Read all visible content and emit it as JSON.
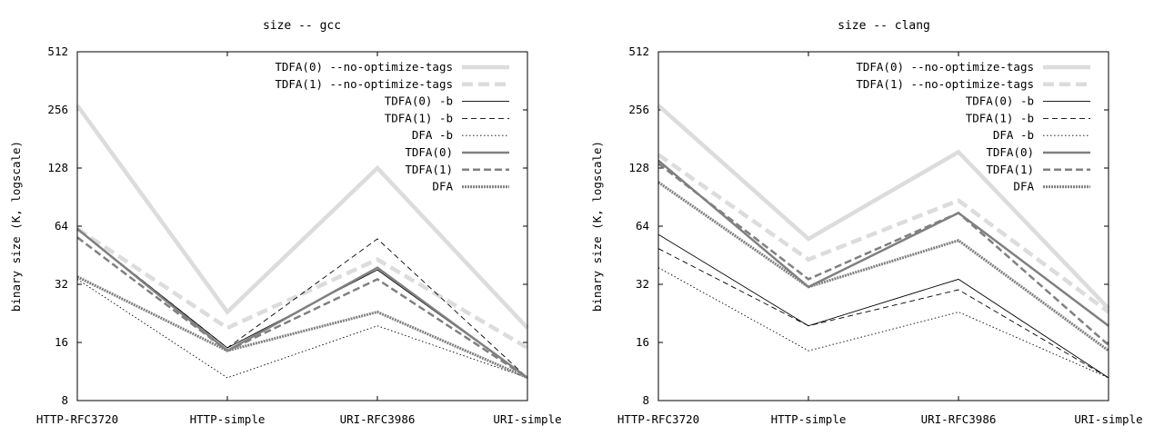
{
  "chart_data": [
    {
      "type": "line",
      "title": "size -- gcc",
      "xlabel": "",
      "ylabel": "binary size (K, logscale)",
      "yscale": "log2",
      "ylim": [
        8,
        512
      ],
      "yticks": [
        "8",
        "16",
        "32",
        "64",
        "128",
        "256",
        "512"
      ],
      "categories": [
        "HTTP-RFC3720",
        "HTTP-simple",
        "URI-RFC3986",
        "URI-simple"
      ],
      "series": [
        {
          "name": "TDFA(0) --no-optimize-tags",
          "values": [
            270,
            23,
            128,
            19
          ]
        },
        {
          "name": "TDFA(1) --no-optimize-tags",
          "values": [
            62,
            19,
            43,
            15
          ]
        },
        {
          "name": "TDFA(0) -b",
          "values": [
            62,
            15,
            38,
            10.5
          ]
        },
        {
          "name": "TDFA(1) -b",
          "values": [
            62,
            15,
            55,
            10.5
          ]
        },
        {
          "name": "DFA -b",
          "values": [
            34,
            10.5,
            19.5,
            10.5
          ]
        },
        {
          "name": "TDFA(0)",
          "values": [
            62,
            14.5,
            39,
            10.5
          ]
        },
        {
          "name": "TDFA(1)",
          "values": [
            56,
            14.5,
            34,
            10.5
          ]
        },
        {
          "name": "DFA",
          "values": [
            35,
            14.5,
            23,
            10.5
          ]
        }
      ]
    },
    {
      "type": "line",
      "title": "size -- clang",
      "xlabel": "",
      "ylabel": "binary size (K, logscale)",
      "yscale": "log2",
      "ylim": [
        8,
        512
      ],
      "yticks": [
        "8",
        "16",
        "32",
        "64",
        "128",
        "256",
        "512"
      ],
      "categories": [
        "HTTP-RFC3720",
        "HTTP-simple",
        "URI-RFC3986",
        "URI-simple"
      ],
      "series": [
        {
          "name": "TDFA(0) --no-optimize-tags",
          "values": [
            270,
            55,
            155,
            24
          ]
        },
        {
          "name": "TDFA(1) --no-optimize-tags",
          "values": [
            150,
            43,
            87,
            23
          ]
        },
        {
          "name": "TDFA(0) -b",
          "values": [
            58,
            19.5,
            34,
            10.5
          ]
        },
        {
          "name": "TDFA(1) -b",
          "values": [
            49,
            19.5,
            30,
            10.5
          ]
        },
        {
          "name": "DFA -b",
          "values": [
            39,
            14.5,
            23,
            10.5
          ]
        },
        {
          "name": "TDFA(0)",
          "values": [
            140,
            31,
            75,
            19.5
          ]
        },
        {
          "name": "TDFA(1)",
          "values": [
            135,
            34,
            75,
            15.5
          ]
        },
        {
          "name": "DFA",
          "values": [
            108,
            31,
            54,
            14.5
          ]
        }
      ]
    }
  ],
  "series_styles": [
    {
      "color": "#dcdcdc",
      "width": 4.5,
      "dash": ""
    },
    {
      "color": "#dcdcdc",
      "width": 4.5,
      "dash": "12,6"
    },
    {
      "color": "#000000",
      "width": 0.9,
      "dash": ""
    },
    {
      "color": "#000000",
      "width": 0.9,
      "dash": "6,4"
    },
    {
      "color": "#000000",
      "width": 0.9,
      "dash": "1.5,2.5"
    },
    {
      "color": "#808080",
      "width": 2.5,
      "dash": ""
    },
    {
      "color": "#808080",
      "width": 2.5,
      "dash": "8,4"
    },
    {
      "color": "#808080",
      "width": 3,
      "dash": "2,1"
    }
  ]
}
